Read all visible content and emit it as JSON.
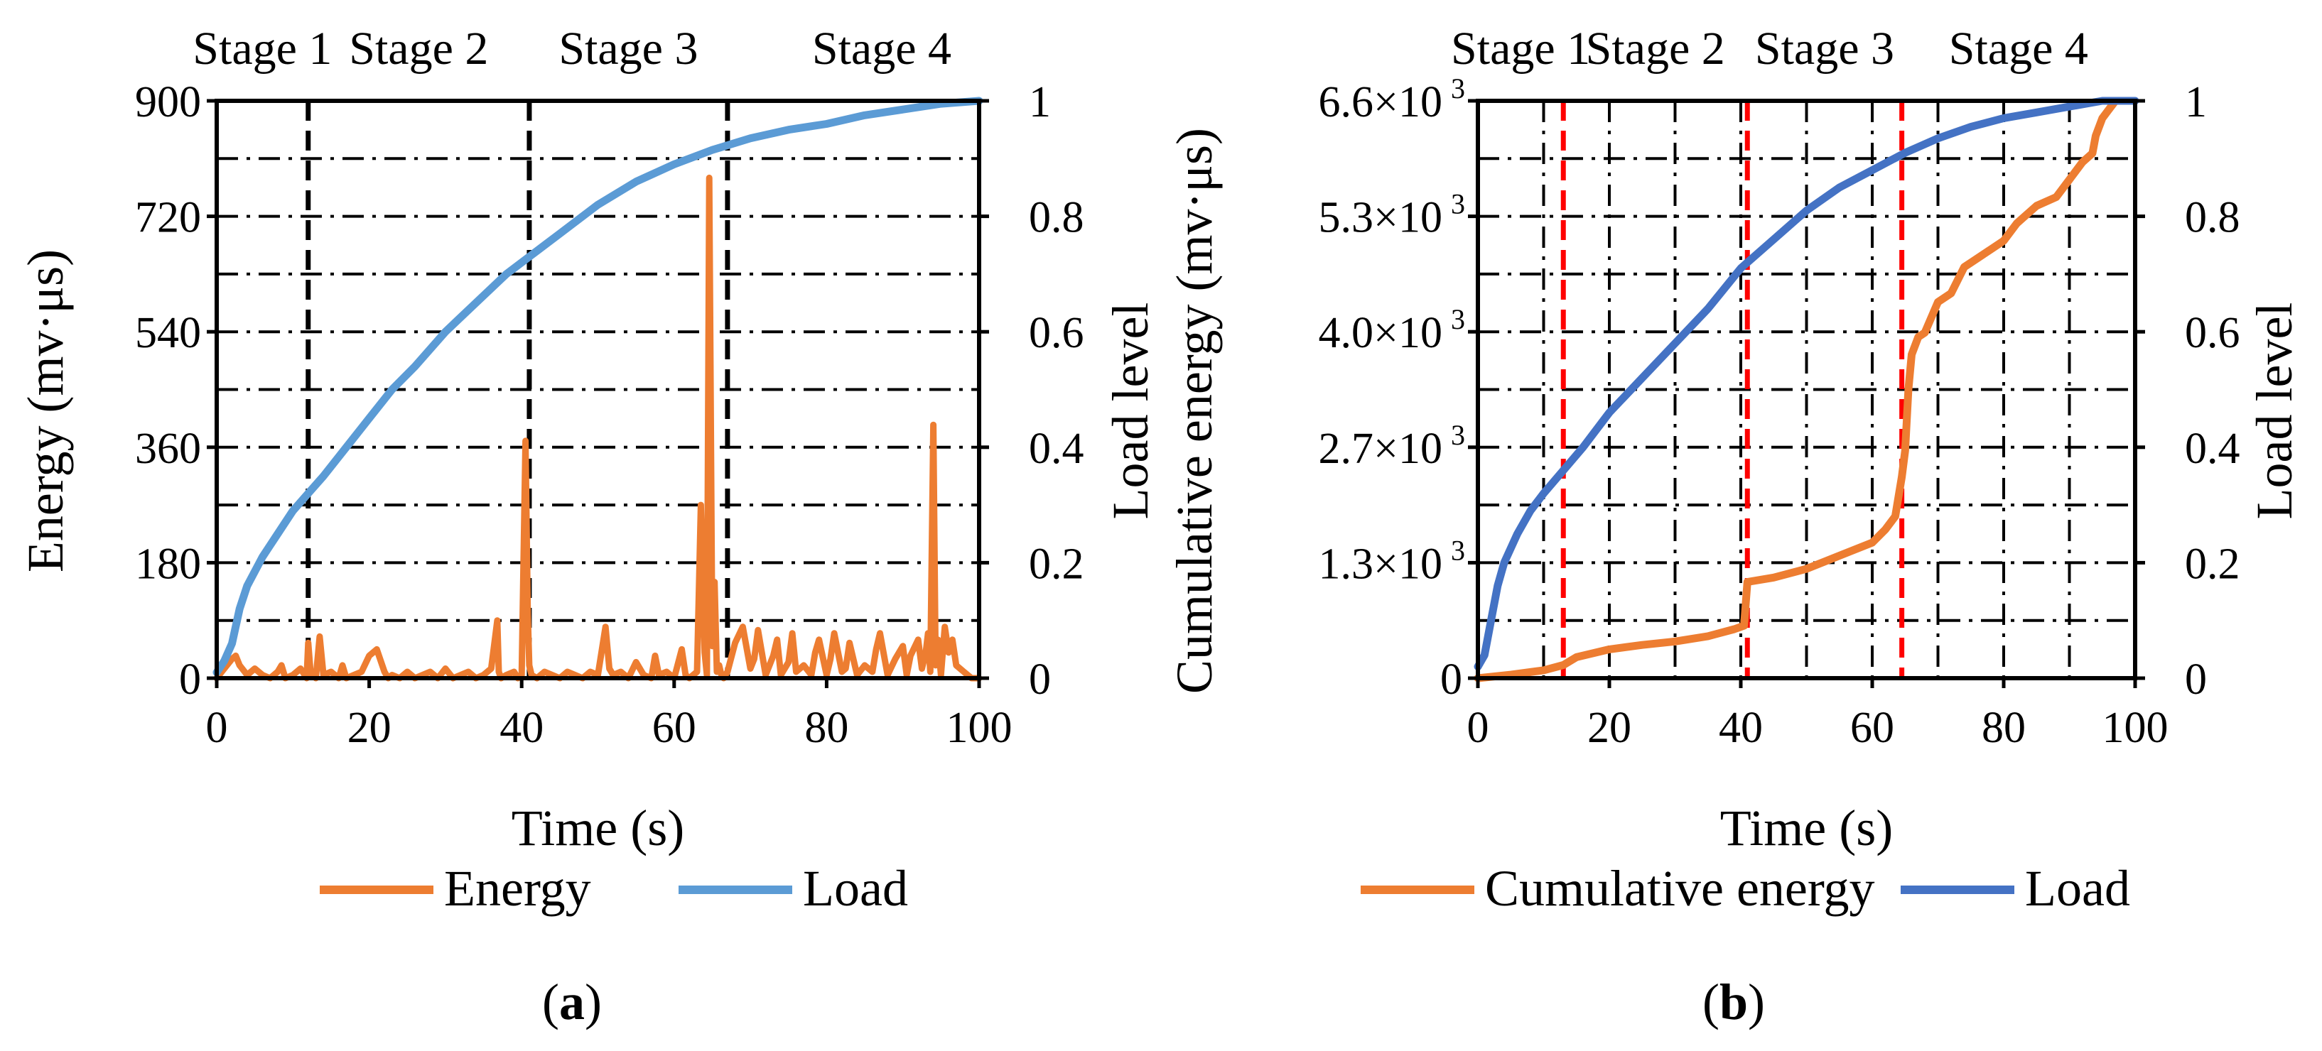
{
  "chart_data": [
    {
      "panel": "a",
      "panel_label": "a",
      "type": "line",
      "xlabel": "Time (s)",
      "ylabel_left": "Energy (mv·μs)",
      "ylabel_right": "Load level",
      "xlim": [
        0,
        100
      ],
      "ylim_left": [
        0,
        900
      ],
      "ylim_right": [
        0,
        1
      ],
      "x_ticks": [
        "0",
        "20",
        "40",
        "60",
        "80",
        "100"
      ],
      "y_left_ticks": [
        "0",
        "180",
        "360",
        "540",
        "720",
        "900"
      ],
      "y_right_ticks": [
        "0",
        "0.2",
        "0.4",
        "0.6",
        "0.8",
        "1"
      ],
      "stages": [
        "Stage 1",
        "Stage 2",
        "Stage 3",
        "Stage 4"
      ],
      "stage_boundaries": [
        12,
        41,
        67
      ],
      "stage_line_color": "#000000",
      "legend": [
        "Energy",
        "Load"
      ],
      "series": [
        {
          "name": "Energy",
          "axis": "left",
          "color": "#ED7D31",
          "x": [
            0,
            1,
            2,
            2.5,
            3,
            4,
            5,
            6,
            7,
            8,
            8.5,
            9,
            10,
            11,
            11.8,
            12,
            12.3,
            13,
            13.5,
            14,
            15,
            16,
            16.5,
            17,
            18,
            19,
            20,
            21,
            22,
            22.5,
            23,
            24,
            25,
            26,
            27,
            28,
            29,
            30,
            31,
            32,
            33,
            34,
            35,
            36,
            36.8,
            37,
            37.3,
            38,
            39,
            39.5,
            40,
            40.5,
            40.8,
            41,
            41.3,
            42,
            43,
            44,
            45,
            46,
            47,
            48,
            49,
            50,
            51,
            51.5,
            52,
            53,
            54,
            55,
            56,
            57,
            57.5,
            58,
            59,
            60,
            61,
            61.5,
            62,
            63,
            63.5,
            64,
            64.3,
            64.6,
            65,
            65.3,
            65.6,
            65.9,
            66.2,
            66.5,
            67,
            68,
            69,
            70,
            70.5,
            71,
            71.5,
            72,
            73,
            73.5,
            74,
            75,
            75.5,
            76,
            77,
            78,
            78.5,
            79,
            80,
            80.5,
            81,
            82,
            82.5,
            83,
            84,
            85,
            86,
            86.5,
            87,
            88,
            89,
            90,
            90.5,
            91,
            92,
            92.5,
            93,
            93.3,
            93.6,
            94,
            94.3,
            94.6,
            95,
            95.5,
            96,
            96.5,
            97,
            98,
            99,
            100
          ],
          "values": [
            0,
            15,
            30,
            35,
            20,
            5,
            15,
            5,
            0,
            10,
            20,
            0,
            5,
            15,
            0,
            55,
            10,
            0,
            65,
            5,
            10,
            0,
            20,
            0,
            5,
            10,
            35,
            45,
            10,
            0,
            5,
            0,
            10,
            0,
            5,
            10,
            0,
            15,
            0,
            5,
            10,
            0,
            5,
            15,
            90,
            10,
            0,
            5,
            10,
            0,
            5,
            370,
            100,
            20,
            5,
            0,
            10,
            5,
            0,
            10,
            5,
            0,
            10,
            5,
            80,
            15,
            5,
            10,
            0,
            25,
            5,
            0,
            35,
            5,
            10,
            0,
            45,
            5,
            0,
            10,
            270,
            40,
            5,
            780,
            50,
            150,
            10,
            20,
            5,
            0,
            10,
            55,
            80,
            15,
            30,
            75,
            40,
            5,
            35,
            60,
            5,
            25,
            70,
            10,
            20,
            5,
            40,
            60,
            5,
            30,
            70,
            10,
            15,
            55,
            5,
            20,
            10,
            45,
            70,
            5,
            30,
            50,
            5,
            35,
            60,
            15,
            40,
            70,
            10,
            395,
            20,
            60,
            5,
            80,
            40,
            60,
            20,
            10,
            0,
            0
          ],
          "label": "Energy"
        },
        {
          "name": "Load",
          "axis": "right",
          "color": "#5B9BD5",
          "x": [
            0,
            1,
            2,
            3,
            4,
            6,
            8,
            10,
            12,
            14,
            17,
            20,
            23,
            26,
            30,
            34,
            38,
            41,
            45,
            50,
            55,
            60,
            65,
            70,
            75,
            80,
            85,
            90,
            95,
            100
          ],
          "values": [
            0.01,
            0.03,
            0.06,
            0.12,
            0.16,
            0.21,
            0.25,
            0.29,
            0.32,
            0.35,
            0.4,
            0.45,
            0.5,
            0.54,
            0.6,
            0.65,
            0.7,
            0.73,
            0.77,
            0.82,
            0.86,
            0.89,
            0.915,
            0.935,
            0.95,
            0.96,
            0.975,
            0.985,
            0.995,
            1.0
          ],
          "label": "Load"
        }
      ]
    },
    {
      "panel": "b",
      "panel_label": "b",
      "type": "line",
      "xlabel": "Time (s)",
      "ylabel_left": "Cumulative energy (mv·μs)",
      "ylabel_right": "Load level",
      "xlim": [
        0,
        100
      ],
      "ylim_left": [
        0,
        6600
      ],
      "ylim_right": [
        0,
        1
      ],
      "x_ticks": [
        "0",
        "20",
        "40",
        "60",
        "80",
        "100"
      ],
      "y_left_ticks": [
        "0",
        "1.3×10",
        "2.7×10",
        "4.0×10",
        "5.3×10",
        "6.6×10"
      ],
      "y_left_exponent": "3",
      "y_right_ticks": [
        "0",
        "0.2",
        "0.4",
        "0.6",
        "0.8",
        "1"
      ],
      "stages": [
        "Stage 1",
        "Stage 2",
        "Stage 3",
        "Stage 4"
      ],
      "stage_boundaries": [
        13,
        41,
        64.5
      ],
      "stage_line_color": "#FF0000",
      "legend": [
        "Cumulative energy",
        "Load"
      ],
      "series": [
        {
          "name": "Cumulative energy",
          "axis": "left",
          "color": "#ED7D31",
          "x": [
            0,
            5,
            10,
            13,
            15,
            20,
            25,
            30,
            35,
            39,
            40.5,
            41,
            45,
            50,
            55,
            60,
            62,
            63.5,
            64.5,
            65,
            65.5,
            66,
            67,
            68,
            70,
            72,
            74,
            75,
            78,
            80,
            82,
            85,
            88,
            90,
            92,
            93.5,
            94,
            95,
            96,
            97
          ],
          "values": [
            0,
            40,
            90,
            150,
            240,
            330,
            380,
            420,
            480,
            560,
            600,
            1100,
            1150,
            1250,
            1400,
            1550,
            1700,
            1850,
            2300,
            2600,
            3300,
            3700,
            3900,
            3950,
            4300,
            4400,
            4700,
            4750,
            4900,
            5000,
            5200,
            5400,
            5500,
            5700,
            5900,
            6000,
            6200,
            6400,
            6500,
            6600
          ],
          "label": "Cumulative energy"
        },
        {
          "name": "Load",
          "axis": "right",
          "color": "#4472C4",
          "x": [
            0,
            1,
            2,
            3,
            4,
            6,
            8,
            10,
            13,
            16,
            20,
            25,
            30,
            35,
            40,
            45,
            50,
            55,
            60,
            65,
            70,
            75,
            80,
            85,
            90,
            95,
            100
          ],
          "values": [
            0.02,
            0.04,
            0.1,
            0.16,
            0.2,
            0.25,
            0.29,
            0.32,
            0.36,
            0.4,
            0.46,
            0.52,
            0.58,
            0.64,
            0.71,
            0.76,
            0.81,
            0.85,
            0.88,
            0.91,
            0.935,
            0.955,
            0.97,
            0.98,
            0.99,
            1.0,
            1.0
          ],
          "label": "Load"
        }
      ]
    }
  ]
}
